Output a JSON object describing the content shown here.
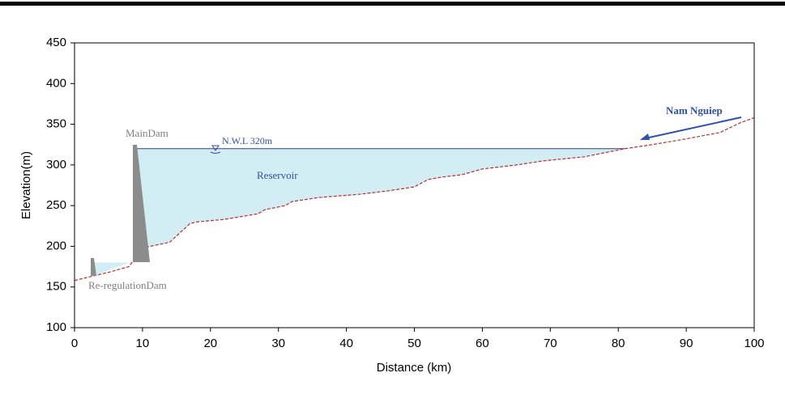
{
  "chart_data": {
    "type": "line",
    "x_label": "Distance (km)",
    "y_label": "Elevation(m)",
    "x": [
      0,
      2,
      5,
      8,
      10,
      14,
      17,
      18,
      22,
      27,
      28,
      31,
      32,
      36,
      42,
      46,
      50,
      52,
      54,
      57,
      60,
      65,
      69,
      75,
      81,
      85,
      90,
      95,
      98,
      100
    ],
    "values": [
      158,
      162,
      168,
      175,
      198,
      205,
      228,
      230,
      233,
      240,
      245,
      250,
      255,
      260,
      264,
      268,
      273,
      282,
      285,
      288,
      295,
      300,
      305,
      310,
      320,
      325,
      332,
      340,
      352,
      358
    ],
    "color": "#b03030",
    "reservoir_level": 320,
    "reregulation_level": 180,
    "annotations": {
      "main_dam": "MainDam",
      "nwl": "N.W.L 320m",
      "reservoir": "Reservoir",
      "river": "Nam Nguiep",
      "reregulation_dam": "Re-regulationDam"
    },
    "xlim": [
      0,
      100
    ],
    "xticks": [
      0,
      10,
      20,
      30,
      40,
      50,
      60,
      70,
      80,
      90,
      100
    ],
    "ylim": [
      100,
      450
    ],
    "yticks": [
      100,
      150,
      200,
      250,
      300,
      350,
      400,
      450
    ],
    "grid": false
  }
}
